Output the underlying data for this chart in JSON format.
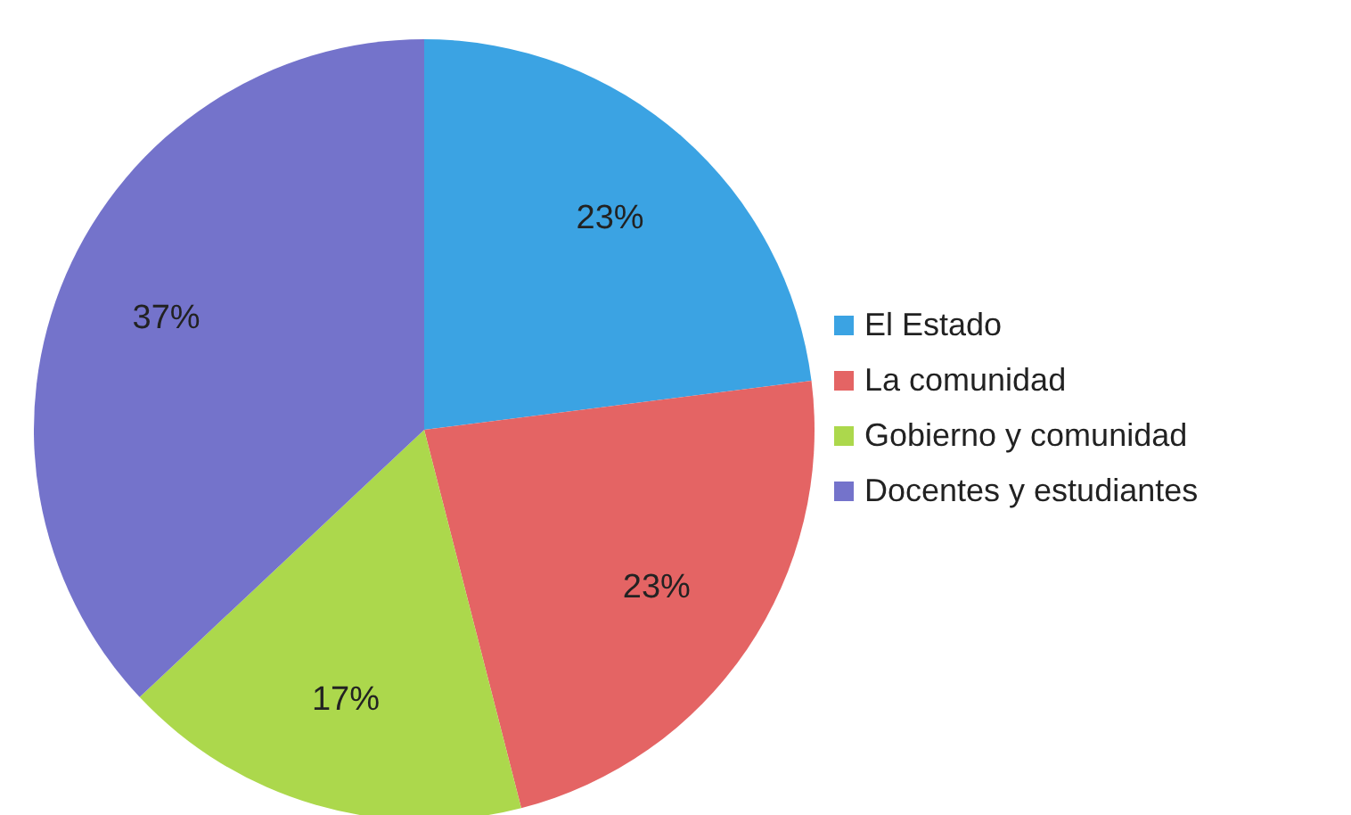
{
  "chart_data": {
    "type": "pie",
    "categories": [
      "El Estado",
      "La comunidad",
      "Gobierno y comunidad",
      "Docentes y estudiantes"
    ],
    "values": [
      23,
      23,
      17,
      37
    ],
    "value_labels": [
      "23%",
      "23%",
      "17%",
      "37%"
    ],
    "colors": [
      "#3ba3e3",
      "#e46464",
      "#acd84c",
      "#7473cb"
    ],
    "legend": "right"
  }
}
